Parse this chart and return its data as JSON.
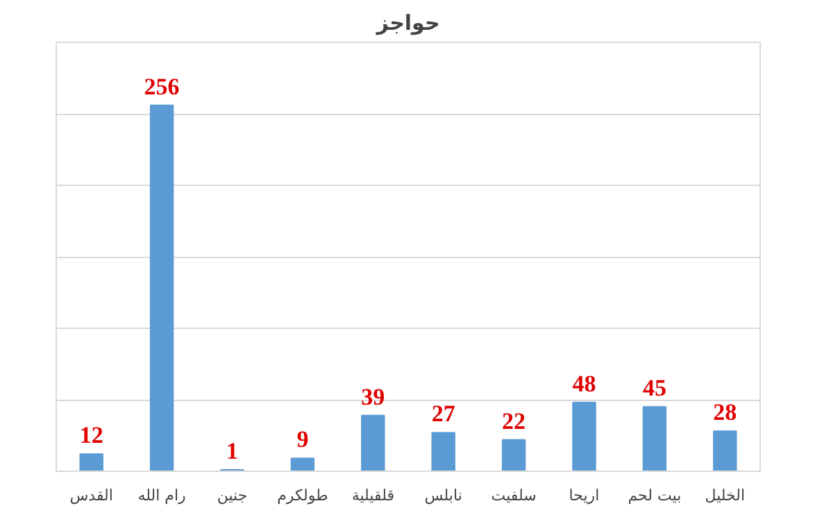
{
  "chart_data": {
    "type": "bar",
    "title": "حواجز",
    "categories": [
      "القدس",
      "رام الله",
      "جنين",
      "طولكرم",
      "قلقيلية",
      "نابلس",
      "سلفيت",
      "اريحا",
      "بيت لحم",
      "الخليل"
    ],
    "values": [
      12,
      256,
      1,
      9,
      39,
      27,
      22,
      48,
      45,
      28
    ],
    "color": "#5b9bd5",
    "ylim": [
      0,
      300
    ],
    "yticks": [
      {
        "value": 0,
        "label": null
      },
      {
        "value": 50,
        "label": null
      },
      {
        "value": 100,
        "label": null
      },
      {
        "value": 150,
        "label": null
      },
      {
        "value": 200,
        "label": null
      },
      {
        "value": 250,
        "label": null
      },
      {
        "value": 300,
        "label": null
      }
    ],
    "tick_labels": "x",
    "grid": "y",
    "data_labels": true
  }
}
